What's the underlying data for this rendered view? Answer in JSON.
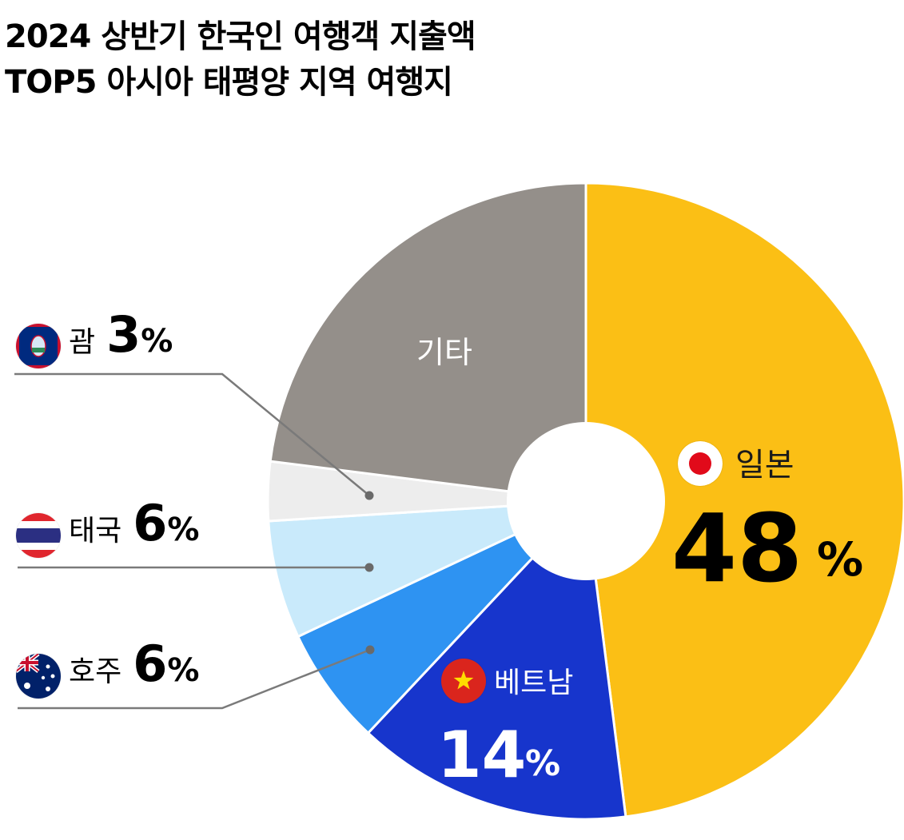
{
  "title_lines": [
    "2024 상반기 한국인 여행객 지출액",
    "TOP5 아시아 태평양 지역 여행지"
  ],
  "chart_data": {
    "type": "pie",
    "start_angle_deg": 0,
    "direction": "clockwise",
    "donut_hole": true,
    "slices": [
      {
        "label": "일본",
        "value": 48,
        "value_text": "48",
        "unit": "%",
        "color": "#FBBF15",
        "flag": "japan-flag-icon"
      },
      {
        "label": "베트남",
        "value": 14,
        "value_text": "14",
        "unit": "%",
        "color": "#1735CC",
        "flag": "vietnam-flag-icon"
      },
      {
        "label": "호주",
        "value": 6,
        "value_text": "6",
        "unit": "%",
        "color": "#2E93F2",
        "flag": "australia-flag-icon"
      },
      {
        "label": "태국",
        "value": 6,
        "value_text": "6",
        "unit": "%",
        "color": "#C9EAFB",
        "flag": "thailand-flag-icon"
      },
      {
        "label": "괌",
        "value": 3,
        "value_text": "3",
        "unit": "%",
        "color": "#EDEDED",
        "flag": "guam-flag-icon"
      },
      {
        "label": "기타",
        "value": 23,
        "color": "#948F8A"
      }
    ]
  }
}
